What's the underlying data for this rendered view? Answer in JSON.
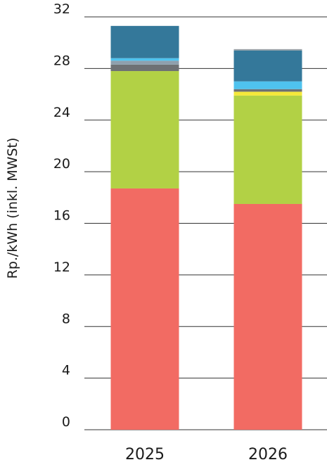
{
  "chart_data": {
    "type": "bar",
    "stacked": true,
    "title": "",
    "xlabel": "",
    "ylabel": "Rp./kWh (inkl. MWSt)",
    "ylim": [
      0,
      32
    ],
    "yticks": [
      0,
      4,
      8,
      12,
      16,
      20,
      24,
      28,
      32
    ],
    "grid": true,
    "categories": [
      "2025",
      "2026"
    ],
    "series": [
      {
        "color": "#f26b63",
        "values": [
          18.7,
          17.5
        ]
      },
      {
        "color": "#b2d145",
        "values": [
          9.1,
          8.4
        ]
      },
      {
        "color": "#f5e83a",
        "values": [
          0.0,
          0.3
        ]
      },
      {
        "color": "#6e7174",
        "values": [
          0.5,
          0.2
        ]
      },
      {
        "color": "#8fa0ad",
        "values": [
          0.3,
          0.0
        ]
      },
      {
        "color": "#4fc3ef",
        "values": [
          0.2,
          0.6
        ]
      },
      {
        "color": "#34789a",
        "values": [
          2.5,
          2.4
        ]
      },
      {
        "color": "#9aa0a6",
        "values": [
          0.0,
          0.1
        ]
      }
    ]
  }
}
